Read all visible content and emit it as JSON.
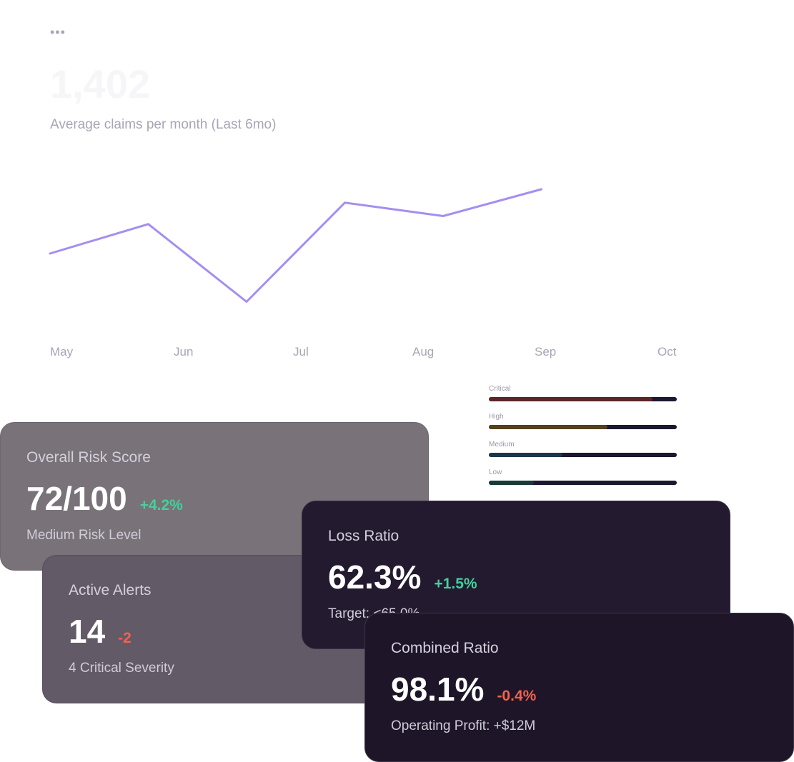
{
  "header": {
    "menu_icon": "more-horizontal-icon",
    "metric_value": "1,402"
  },
  "chart_data": {
    "type": "line",
    "title": "Average claims per month (Last 6mo)",
    "x": [
      "May",
      "",
      "Jun",
      "",
      "Jul",
      "",
      "Aug",
      "",
      "Sep",
      "",
      "Oct"
    ],
    "categories": [
      "May",
      "Jun",
      "Jul",
      "Aug",
      "Sep",
      "Oct"
    ],
    "series": [
      {
        "values": [
          44,
          55,
          26,
          63,
          58,
          68
        ],
        "color": "#a48ef0"
      }
    ],
    "ylim": [
      20,
      80
    ],
    "grid": false
  },
  "severity": [
    {
      "label": "Critical",
      "level": 0.87,
      "color": "#5a2628"
    },
    {
      "label": "High",
      "level": 0.63,
      "color": "#55401e"
    },
    {
      "label": "Medium",
      "level": 0.39,
      "color": "#1c3848"
    },
    {
      "label": "Low",
      "level": 0.24,
      "color": "#173a3a"
    }
  ],
  "cards": {
    "risk": {
      "title": "Overall Risk Score",
      "value": "72/100",
      "delta": "+4.2%",
      "sub": "Medium Risk Level"
    },
    "alerts": {
      "title": "Active Alerts",
      "value": "14",
      "delta": "-2",
      "sub": "4 Critical Severity"
    },
    "loss": {
      "title": "Loss Ratio",
      "value": "62.3%",
      "delta": "+1.5%",
      "sub": "Target: <65.0%"
    },
    "combined": {
      "title": "Combined Ratio",
      "value": "98.1%",
      "delta": "-0.4%",
      "sub": "Operating Profit: +$12M"
    }
  },
  "colors": {
    "positive": "#3fd39b",
    "negative": "#f4614f",
    "line": "#a48ef0"
  }
}
